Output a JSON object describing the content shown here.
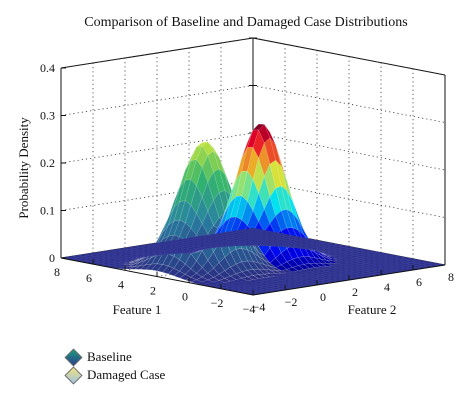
{
  "chart_data": {
    "type": "surface",
    "title": "Comparison of Baseline and Damaged Case Distributions",
    "xlabel": "Feature 1",
    "ylabel": "Feature 2",
    "zlabel": "Probability Density",
    "xlim": [
      -4,
      8
    ],
    "ylim": [
      -4,
      8
    ],
    "zlim": [
      0,
      0.4
    ],
    "xticks": [
      "−4",
      "−2",
      "0",
      "2",
      "4",
      "6",
      "8"
    ],
    "yticks": [
      "−4",
      "−2",
      "0",
      "2",
      "4",
      "6",
      "8"
    ],
    "zticks": [
      "0",
      "0.1",
      "0.2",
      "0.3",
      "0.4"
    ],
    "grid": true,
    "legend_position": "bottom-left",
    "series": [
      {
        "name": "Baseline",
        "colormap": "green-blue",
        "mean": [
          2,
          -1
        ],
        "std": [
          1.2,
          1.2
        ],
        "peak": 0.27,
        "swatch": "#2e8b6e"
      },
      {
        "name": "Damaged Case",
        "colormap": "jet",
        "mean": [
          2,
          2.5
        ],
        "std": [
          1.1,
          1.1
        ],
        "peak": 0.29,
        "swatch": "#e8d870"
      }
    ]
  },
  "legend": {
    "baseline_label": "Baseline",
    "damaged_label": "Damaged Case"
  }
}
